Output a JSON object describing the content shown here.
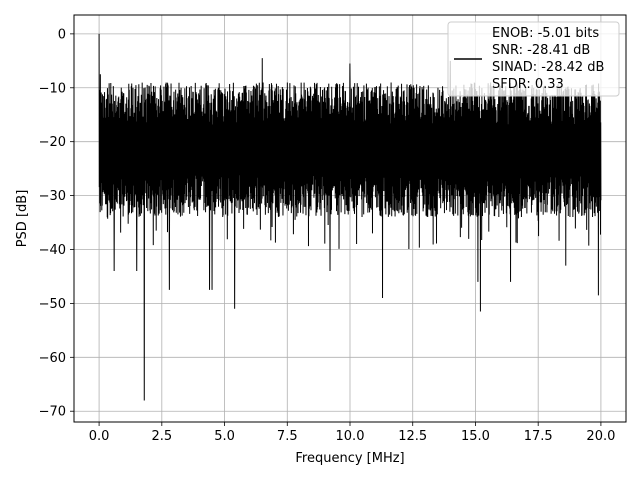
{
  "chart_data": {
    "type": "line",
    "title": "",
    "xlabel": "Frequency [MHz]",
    "ylabel": "PSD [dB]",
    "xlim": [
      -1.0,
      21.0
    ],
    "ylim": [
      -72,
      3.5
    ],
    "xticks": [
      0.0,
      2.5,
      5.0,
      7.5,
      10.0,
      12.5,
      15.0,
      17.5,
      20.0
    ],
    "xtick_labels": [
      "0.0",
      "2.5",
      "5.0",
      "7.5",
      "10.0",
      "12.5",
      "15.0",
      "17.5",
      "20.0"
    ],
    "yticks": [
      0,
      -10,
      -20,
      -30,
      -40,
      -50,
      -60,
      -70
    ],
    "ytick_labels": [
      "0",
      "−10",
      "−20",
      "−30",
      "−40",
      "−50",
      "−60",
      "−70"
    ],
    "grid": true,
    "legend_position": "top-right",
    "legend_entries": [
      "ENOB: -5.01 bits",
      "SNR: -28.41 dB",
      "SINAD: -28.42 dB",
      "SFDR: 0.33"
    ],
    "series": [
      {
        "color": "#000000",
        "x_range": [
          0.0,
          20.0
        ],
        "band_upper_approx": -9,
        "band_lower_approx": -32,
        "peaks": [
          {
            "x": 0.0,
            "y": 0.0
          },
          {
            "x": 0.05,
            "y": -7.5
          },
          {
            "x": 6.5,
            "y": -4.5
          },
          {
            "x": 10.0,
            "y": -5.5
          },
          {
            "x": 14.0,
            "y": -5.0
          }
        ],
        "dips": [
          {
            "x": 1.8,
            "y": -68.0
          },
          {
            "x": 4.4,
            "y": -47.5
          },
          {
            "x": 4.5,
            "y": -47.5
          },
          {
            "x": 5.4,
            "y": -51.0
          },
          {
            "x": 11.3,
            "y": -49.0
          },
          {
            "x": 15.2,
            "y": -51.5
          },
          {
            "x": 19.9,
            "y": -48.5
          },
          {
            "x": 2.8,
            "y": -47.5
          },
          {
            "x": 0.6,
            "y": -44.0
          },
          {
            "x": 1.5,
            "y": -44.0
          },
          {
            "x": 9.2,
            "y": -44.0
          },
          {
            "x": 15.1,
            "y": -46.0
          },
          {
            "x": 16.4,
            "y": -46.0
          },
          {
            "x": 18.6,
            "y": -43.0
          }
        ]
      }
    ]
  }
}
